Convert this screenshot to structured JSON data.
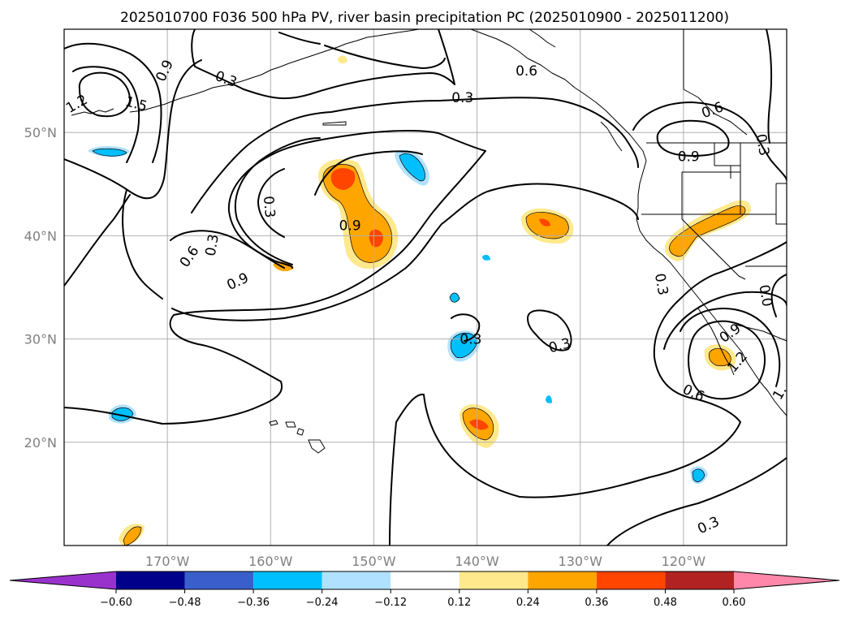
{
  "title": "2025010700 F036 500 hPa PV, river basin precipitation PC (2025010900 - 2025011200)",
  "map": {
    "lon_min": -180,
    "lon_max": -110,
    "lat_min": 10,
    "lat_max": 60,
    "lon_ticks": [
      {
        "value": -170,
        "label": "170°W"
      },
      {
        "value": -160,
        "label": "160°W"
      },
      {
        "value": -150,
        "label": "150°W"
      },
      {
        "value": -140,
        "label": "140°W"
      },
      {
        "value": -130,
        "label": "130°W"
      },
      {
        "value": -120,
        "label": "120°W"
      }
    ],
    "lat_ticks": [
      {
        "value": 50,
        "label": "50°N"
      },
      {
        "value": 40,
        "label": "40°N"
      },
      {
        "value": 30,
        "label": "30°N"
      },
      {
        "value": 20,
        "label": "20°N"
      }
    ],
    "grid": true
  },
  "colorbar": {
    "levels": [
      -0.6,
      -0.48,
      -0.36,
      -0.24,
      -0.12,
      0.12,
      0.24,
      0.36,
      0.48,
      0.6
    ],
    "tick_labels": [
      "−0.60",
      "−0.48",
      "−0.36",
      "−0.24",
      "−0.12",
      "0.12",
      "0.24",
      "0.36",
      "0.48",
      "0.60"
    ],
    "colors": [
      "#9932cc",
      "#00008b",
      "#3a5fcd",
      "#00bfff",
      "#b0e2ff",
      "#ffffff",
      "#ffe98c",
      "#ffa500",
      "#ff4500",
      "#b22222",
      "#ff88aa"
    ],
    "extend": "both"
  },
  "contour_labels": [
    {
      "text": "0.9",
      "lon": -170.3,
      "lat": 56.0,
      "angle": 65
    },
    {
      "text": "1.2",
      "lon": -178.8,
      "lat": 52.8,
      "angle": 30
    },
    {
      "text": "1.5",
      "lon": -173.0,
      "lat": 52.8,
      "angle": -15
    },
    {
      "text": "0.3",
      "lon": -164.3,
      "lat": 55.2,
      "angle": -20
    },
    {
      "text": "0.6",
      "lon": -135.2,
      "lat": 56.0,
      "angle": 0
    },
    {
      "text": "0.3",
      "lon": -141.4,
      "lat": 53.4,
      "angle": 0
    },
    {
      "text": "0.3",
      "lon": -165.7,
      "lat": 39.1,
      "angle": 80
    },
    {
      "text": "0.6",
      "lon": -167.9,
      "lat": 38.0,
      "angle": 55
    },
    {
      "text": "0.9",
      "lon": -163.2,
      "lat": 35.6,
      "angle": 25
    },
    {
      "text": "0.3",
      "lon": -160.1,
      "lat": 42.8,
      "angle": -85
    },
    {
      "text": "0.9",
      "lon": -152.3,
      "lat": 41.0,
      "angle": 0
    },
    {
      "text": "0.6",
      "lon": -117.2,
      "lat": 52.2,
      "angle": 20
    },
    {
      "text": "0.9",
      "lon": -119.5,
      "lat": 47.7,
      "angle": 0
    },
    {
      "text": "0.3",
      "lon": -112.3,
      "lat": 48.8,
      "angle": -80
    },
    {
      "text": "0.3",
      "lon": -122.1,
      "lat": 35.3,
      "angle": -80
    },
    {
      "text": "0.0",
      "lon": -112.0,
      "lat": 34.2,
      "angle": -80
    },
    {
      "text": "0.9",
      "lon": -115.5,
      "lat": 30.6,
      "angle": 35
    },
    {
      "text": "1.2",
      "lon": -114.8,
      "lat": 27.8,
      "angle": 50
    },
    {
      "text": "0.6",
      "lon": -119.0,
      "lat": 24.8,
      "angle": -25
    },
    {
      "text": "0.3",
      "lon": -140.6,
      "lat": 30.0,
      "angle": 0
    },
    {
      "text": "0.3",
      "lon": -132.0,
      "lat": 29.4,
      "angle": 15
    },
    {
      "text": "0.3",
      "lon": -117.6,
      "lat": 12.0,
      "angle": 25
    },
    {
      "text": "1.",
      "lon": -110.7,
      "lat": 24.8,
      "angle": 60
    }
  ]
}
